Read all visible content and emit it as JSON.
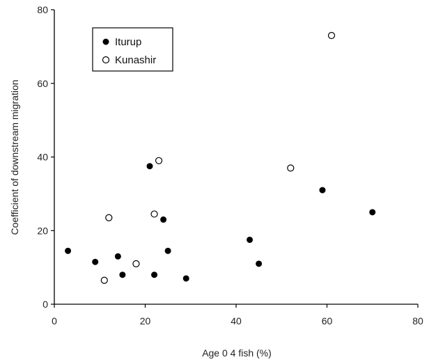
{
  "chart_data": {
    "type": "scatter",
    "title": "",
    "xlabel": "Age 0 4 fish (%)",
    "ylabel": "Coefficient of downstream migration",
    "xlim": [
      0,
      80
    ],
    "ylim": [
      0,
      80
    ],
    "xticks": [
      0,
      20,
      40,
      60,
      80
    ],
    "yticks": [
      0,
      20,
      40,
      60,
      80
    ],
    "grid": false,
    "legend": "top-left",
    "series": [
      {
        "name": "Iturup",
        "marker": "filled-circle",
        "color": "#000000",
        "x": [
          3,
          9,
          14,
          15,
          21,
          22,
          24,
          25,
          29,
          43,
          45,
          59,
          70
        ],
        "y": [
          14.5,
          11.5,
          13,
          8,
          37.5,
          8,
          23,
          14.5,
          7,
          17.5,
          11,
          31,
          25
        ]
      },
      {
        "name": "Kunashir",
        "marker": "open-circle",
        "color": "#000000",
        "x": [
          11,
          12,
          18,
          22,
          23,
          52,
          61
        ],
        "y": [
          6.5,
          23.5,
          11,
          24.5,
          39,
          37,
          73
        ]
      }
    ]
  }
}
